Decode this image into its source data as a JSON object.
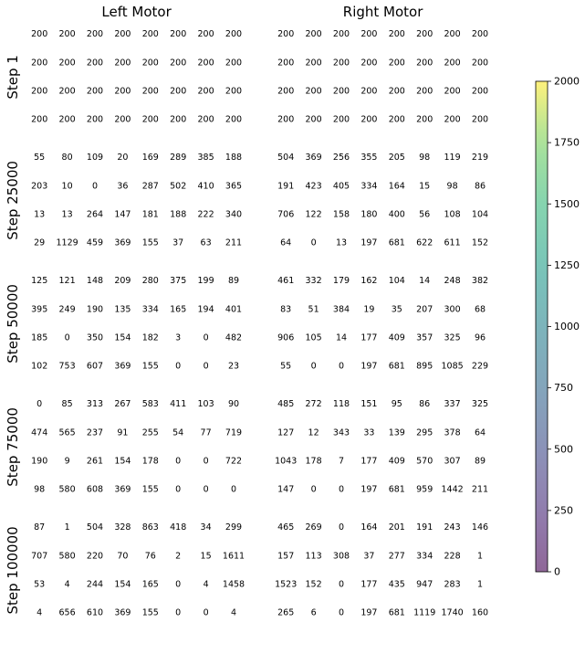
{
  "chart_data": {
    "type": "heatmap",
    "columns": [
      "Left Motor",
      "Right Motor"
    ],
    "rows": [
      "Step 1",
      "Step 25000",
      "Step 50000",
      "Step 75000",
      "Step 100000"
    ],
    "colorbar": {
      "min": 0,
      "max": 2000,
      "ticks": [
        0,
        250,
        500,
        750,
        1000,
        1250,
        1500,
        1750,
        2000
      ],
      "colormap": "viridis",
      "alpha": 0.6
    },
    "panels": [
      {
        "row": "Step 1",
        "left": [
          [
            200,
            200,
            200,
            200,
            200,
            200,
            200,
            200
          ],
          [
            200,
            200,
            200,
            200,
            200,
            200,
            200,
            200
          ],
          [
            200,
            200,
            200,
            200,
            200,
            200,
            200,
            200
          ],
          [
            200,
            200,
            200,
            200,
            200,
            200,
            200,
            200
          ]
        ],
        "right": [
          [
            200,
            200,
            200,
            200,
            200,
            200,
            200,
            200
          ],
          [
            200,
            200,
            200,
            200,
            200,
            200,
            200,
            200
          ],
          [
            200,
            200,
            200,
            200,
            200,
            200,
            200,
            200
          ],
          [
            200,
            200,
            200,
            200,
            200,
            200,
            200,
            200
          ]
        ]
      },
      {
        "row": "Step 25000",
        "left": [
          [
            55,
            80,
            109,
            20,
            169,
            289,
            385,
            188
          ],
          [
            203,
            10,
            0,
            36,
            287,
            502,
            410,
            365
          ],
          [
            13,
            13,
            264,
            147,
            181,
            188,
            222,
            340
          ],
          [
            29,
            1129,
            459,
            369,
            155,
            37,
            63,
            211
          ]
        ],
        "right": [
          [
            504,
            369,
            256,
            355,
            205,
            98,
            119,
            219
          ],
          [
            191,
            423,
            405,
            334,
            164,
            15,
            98,
            86
          ],
          [
            706,
            122,
            158,
            180,
            400,
            56,
            108,
            104
          ],
          [
            64,
            0,
            13,
            197,
            681,
            622,
            611,
            152
          ]
        ]
      },
      {
        "row": "Step 50000",
        "left": [
          [
            125,
            121,
            148,
            209,
            280,
            375,
            199,
            89
          ],
          [
            395,
            249,
            190,
            135,
            334,
            165,
            194,
            401
          ],
          [
            185,
            0,
            350,
            154,
            182,
            3,
            0,
            482
          ],
          [
            102,
            753,
            607,
            369,
            155,
            0,
            0,
            23
          ]
        ],
        "right": [
          [
            461,
            332,
            179,
            162,
            104,
            14,
            248,
            382
          ],
          [
            83,
            51,
            384,
            19,
            35,
            207,
            300,
            68
          ],
          [
            906,
            105,
            14,
            177,
            409,
            357,
            325,
            96
          ],
          [
            55,
            0,
            0,
            197,
            681,
            895,
            1085,
            229
          ]
        ]
      },
      {
        "row": "Step 75000",
        "left": [
          [
            0,
            85,
            313,
            267,
            583,
            411,
            103,
            90
          ],
          [
            474,
            565,
            237,
            91,
            255,
            54,
            77,
            719
          ],
          [
            190,
            9,
            261,
            154,
            178,
            0,
            0,
            722
          ],
          [
            98,
            580,
            608,
            369,
            155,
            0,
            0,
            0
          ]
        ],
        "right": [
          [
            485,
            272,
            118,
            151,
            95,
            86,
            337,
            325
          ],
          [
            127,
            12,
            343,
            33,
            139,
            295,
            378,
            64
          ],
          [
            1043,
            178,
            7,
            177,
            409,
            570,
            307,
            89
          ],
          [
            147,
            0,
            0,
            197,
            681,
            959,
            1442,
            211
          ]
        ]
      },
      {
        "row": "Step 100000",
        "left": [
          [
            87,
            1,
            504,
            328,
            863,
            418,
            34,
            299
          ],
          [
            707,
            580,
            220,
            70,
            76,
            2,
            15,
            1611
          ],
          [
            53,
            4,
            244,
            154,
            165,
            0,
            4,
            1458
          ],
          [
            4,
            656,
            610,
            369,
            155,
            0,
            0,
            4
          ]
        ],
        "right": [
          [
            465,
            269,
            0,
            164,
            201,
            191,
            243,
            146
          ],
          [
            157,
            113,
            308,
            37,
            277,
            334,
            228,
            1
          ],
          [
            1523,
            152,
            0,
            177,
            435,
            947,
            283,
            1
          ],
          [
            265,
            6,
            0,
            197,
            681,
            1119,
            1740,
            160
          ]
        ]
      }
    ]
  }
}
